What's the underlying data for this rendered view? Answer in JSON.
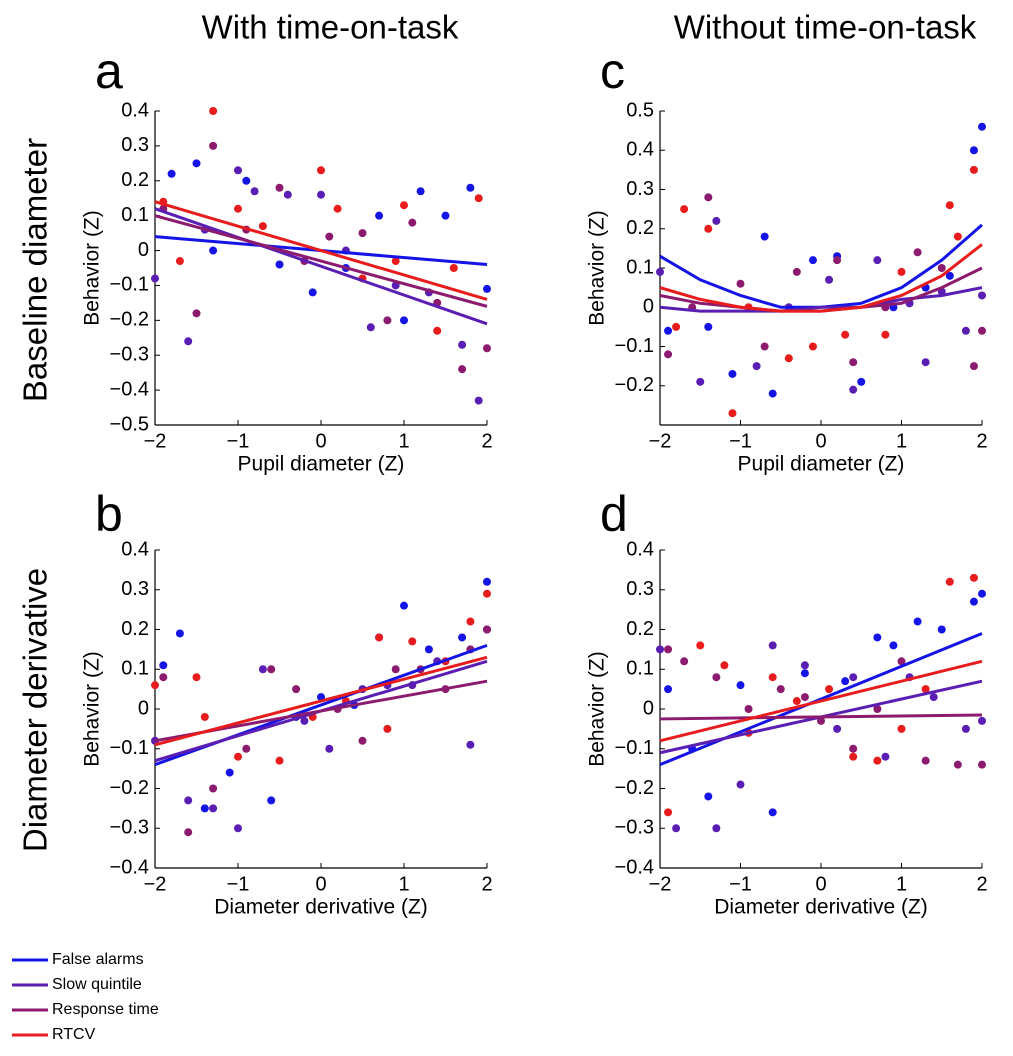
{
  "columns": [
    "With time-on-task",
    "Without time-on-task"
  ],
  "rows": [
    "Baseline diameter",
    "Diameter derivative"
  ],
  "chart_data": [
    {
      "type": "scatter",
      "label": "a",
      "xlabel": "Pupil diameter (Z)",
      "ylabel": "Behavior (Z)",
      "xlim": [
        -2,
        2
      ],
      "ylim": [
        -0.5,
        0.4
      ],
      "xticks": [
        {
          "value": -2,
          "label": "−2"
        },
        {
          "value": -1,
          "label": "−1"
        },
        0,
        1,
        2
      ],
      "yticks": [
        0.4,
        0.3,
        0.2,
        0.1,
        0,
        {
          "value": -0.1,
          "label": "−0.1"
        },
        {
          "value": -0.2,
          "label": "−0.2"
        },
        {
          "value": -0.3,
          "label": "−0.3"
        },
        {
          "value": -0.4,
          "label": "−0.4"
        },
        {
          "value": -0.5,
          "label": "−0.5"
        }
      ],
      "series": [
        {
          "name": "False alarms",
          "color": "#1414e6",
          "x": [
            -1.8,
            -1.5,
            -1.3,
            -0.9,
            -0.5,
            -0.1,
            0.3,
            0.7,
            1.0,
            1.2,
            1.5,
            1.8,
            2.0
          ],
          "values": [
            0.22,
            0.25,
            0.0,
            0.2,
            -0.04,
            -0.12,
            -0.05,
            0.1,
            -0.2,
            0.17,
            0.1,
            0.18,
            -0.11
          ],
          "fit_x": [
            -2,
            2
          ],
          "fit": [
            0.04,
            -0.04
          ]
        },
        {
          "name": "Slow quintile",
          "color": "#5a1eb4",
          "x": [
            -2,
            -1.6,
            -1.4,
            -1.0,
            -0.8,
            -0.4,
            0,
            0.3,
            0.6,
            0.9,
            1.3,
            1.7,
            1.9
          ],
          "values": [
            -0.08,
            -0.26,
            0.06,
            0.23,
            0.17,
            0.16,
            0.16,
            0.0,
            -0.22,
            -0.1,
            -0.12,
            -0.27,
            -0.43
          ],
          "fit_x": [
            -2,
            2
          ],
          "fit": [
            0.12,
            -0.21
          ]
        },
        {
          "name": "Response time",
          "color": "#8c1a6e",
          "x": [
            -1.9,
            -1.5,
            -1.3,
            -0.9,
            -0.5,
            -0.2,
            0.1,
            0.5,
            0.8,
            1.1,
            1.4,
            1.7,
            2.0
          ],
          "values": [
            0.12,
            -0.18,
            0.3,
            0.06,
            0.18,
            -0.03,
            0.04,
            0.05,
            -0.2,
            0.08,
            -0.15,
            -0.34,
            -0.28
          ],
          "fit_x": [
            -2,
            2
          ],
          "fit": [
            0.1,
            -0.16
          ]
        },
        {
          "name": "RTCV",
          "color": "#e81c1c",
          "x": [
            -1.9,
            -1.7,
            -1.3,
            -1.0,
            -0.7,
            0.0,
            0.2,
            0.5,
            0.9,
            1.0,
            1.4,
            1.6,
            1.9
          ],
          "values": [
            0.14,
            -0.03,
            0.4,
            0.12,
            0.07,
            0.23,
            0.12,
            -0.08,
            -0.03,
            0.13,
            -0.23,
            -0.05,
            0.15
          ],
          "fit_x": [
            -2,
            2
          ],
          "fit": [
            0.14,
            -0.14
          ]
        }
      ]
    },
    {
      "type": "scatter",
      "label": "b",
      "xlabel": "Diameter derivative (Z)",
      "ylabel": "Behavior (Z)",
      "xlim": [
        -2,
        2
      ],
      "ylim": [
        -0.4,
        0.4
      ],
      "xticks": [
        {
          "value": -2,
          "label": "−2"
        },
        {
          "value": -1,
          "label": "−1"
        },
        0,
        1,
        2
      ],
      "yticks": [
        0.4,
        0.3,
        0.2,
        0.1,
        0,
        {
          "value": -0.1,
          "label": "−0.1"
        },
        {
          "value": -0.2,
          "label": "−0.2"
        },
        {
          "value": -0.3,
          "label": "−0.3"
        },
        {
          "value": -0.4,
          "label": "−0.4"
        }
      ],
      "series": [
        {
          "name": "False alarms",
          "color": "#1414e6",
          "x": [
            -1.9,
            -1.7,
            -1.4,
            -1.1,
            -0.6,
            -0.3,
            0.0,
            0.4,
            0.7,
            1.0,
            1.3,
            1.7,
            2.0
          ],
          "values": [
            0.11,
            0.19,
            -0.25,
            -0.16,
            -0.23,
            -0.02,
            0.03,
            0.01,
            0.18,
            0.26,
            0.15,
            0.18,
            0.32
          ],
          "fit_x": [
            -2,
            2
          ],
          "fit": [
            -0.14,
            0.16
          ]
        },
        {
          "name": "Slow quintile",
          "color": "#5a1eb4",
          "x": [
            -2,
            -1.6,
            -1.3,
            -1.0,
            -0.7,
            -0.2,
            0.1,
            0.5,
            0.8,
            1.1,
            1.4,
            1.8,
            2.0
          ],
          "values": [
            -0.08,
            -0.23,
            -0.25,
            -0.3,
            0.1,
            -0.03,
            -0.1,
            0.05,
            0.06,
            0.06,
            0.12,
            -0.09,
            0.2
          ],
          "fit_x": [
            -2,
            2
          ],
          "fit": [
            -0.13,
            0.12
          ]
        },
        {
          "name": "Response time",
          "color": "#8c1a6e",
          "x": [
            -1.9,
            -1.6,
            -1.3,
            -0.9,
            -0.6,
            -0.3,
            0.2,
            0.5,
            0.9,
            1.2,
            1.5,
            1.8,
            2.0
          ],
          "values": [
            0.08,
            -0.31,
            -0.2,
            -0.1,
            0.1,
            0.05,
            0.0,
            -0.08,
            0.1,
            0.1,
            0.05,
            0.15,
            0.2
          ],
          "fit_x": [
            -2,
            2
          ],
          "fit": [
            -0.08,
            0.07
          ]
        },
        {
          "name": "RTCV",
          "color": "#e81c1c",
          "x": [
            -2,
            -1.5,
            -1.4,
            -1.0,
            -0.5,
            -0.1,
            0.3,
            0.7,
            0.8,
            1.1,
            1.5,
            1.8,
            2.0
          ],
          "values": [
            0.06,
            0.08,
            -0.02,
            -0.12,
            -0.13,
            -0.02,
            0.02,
            0.18,
            -0.05,
            0.17,
            0.12,
            0.22,
            0.29
          ],
          "fit_x": [
            -2,
            2
          ],
          "fit": [
            -0.09,
            0.13
          ]
        }
      ]
    },
    {
      "type": "scatter",
      "label": "c",
      "xlabel": "Pupil diameter (Z)",
      "ylabel": "Behavior (Z)",
      "xlim": [
        -2,
        2
      ],
      "ylim": [
        -0.3,
        0.5
      ],
      "xticks": [
        {
          "value": -2,
          "label": "−2"
        },
        {
          "value": -1,
          "label": "−1"
        },
        0,
        1,
        2
      ],
      "yticks": [
        0.5,
        0.4,
        0.3,
        0.2,
        0.1,
        0,
        {
          "value": -0.1,
          "label": "−0.1"
        },
        {
          "value": -0.2,
          "label": "−0.2"
        }
      ],
      "series": [
        {
          "name": "False alarms",
          "color": "#1414e6",
          "x": [
            -1.9,
            -1.4,
            -1.1,
            -0.7,
            -0.6,
            -0.1,
            0.2,
            0.5,
            0.9,
            1.3,
            1.6,
            1.9,
            2.0
          ],
          "values": [
            -0.06,
            -0.05,
            -0.17,
            0.18,
            -0.22,
            0.12,
            0.13,
            -0.19,
            0.0,
            0.05,
            0.08,
            0.4,
            0.46
          ],
          "fit_x": [
            -2,
            -1.5,
            -1,
            -0.5,
            0,
            0.5,
            1,
            1.5,
            2
          ],
          "fit": [
            0.13,
            0.07,
            0.03,
            0.0,
            0.0,
            0.01,
            0.05,
            0.12,
            0.21
          ]
        },
        {
          "name": "Slow quintile",
          "color": "#5a1eb4",
          "x": [
            -2,
            -1.5,
            -1.3,
            -0.8,
            -0.4,
            0.1,
            0.4,
            0.7,
            1.1,
            1.3,
            1.5,
            1.8,
            2.0
          ],
          "values": [
            0.09,
            -0.19,
            0.22,
            -0.15,
            0.0,
            0.07,
            -0.21,
            0.12,
            0.01,
            -0.14,
            0.04,
            -0.06,
            0.03
          ],
          "fit_x": [
            -2,
            -1.5,
            -1,
            -0.5,
            0,
            0.5,
            1,
            1.5,
            2
          ],
          "fit": [
            0.0,
            -0.01,
            -0.01,
            -0.01,
            0.0,
            0.0,
            0.02,
            0.03,
            0.05
          ]
        },
        {
          "name": "Response time",
          "color": "#8c1a6e",
          "x": [
            -1.9,
            -1.6,
            -1.4,
            -1.0,
            -0.7,
            -0.3,
            0.2,
            0.4,
            0.8,
            1.2,
            1.5,
            1.9,
            2.0
          ],
          "values": [
            -0.12,
            0.0,
            0.28,
            0.06,
            -0.1,
            0.09,
            0.12,
            -0.14,
            0.0,
            0.14,
            0.1,
            -0.15,
            -0.06
          ],
          "fit_x": [
            -2,
            -1.5,
            -1,
            -0.5,
            0,
            0.5,
            1,
            1.5,
            2
          ],
          "fit": [
            0.03,
            0.01,
            0.0,
            -0.01,
            -0.01,
            0.0,
            0.01,
            0.05,
            0.1
          ]
        },
        {
          "name": "RTCV",
          "color": "#e81c1c",
          "x": [
            -1.8,
            -1.7,
            -1.4,
            -1.1,
            -0.9,
            -0.4,
            -0.1,
            0.3,
            0.8,
            1.0,
            1.6,
            1.7,
            1.9
          ],
          "values": [
            -0.05,
            0.25,
            0.2,
            -0.27,
            0.0,
            -0.13,
            -0.1,
            -0.07,
            -0.07,
            0.09,
            0.26,
            0.18,
            0.35
          ],
          "fit_x": [
            -2,
            -1.5,
            -1,
            -0.5,
            0,
            0.5,
            1,
            1.5,
            2
          ],
          "fit": [
            0.05,
            0.02,
            0.0,
            -0.01,
            -0.01,
            0.0,
            0.03,
            0.08,
            0.16
          ]
        }
      ]
    },
    {
      "type": "scatter",
      "label": "d",
      "xlabel": "Diameter derivative (Z)",
      "ylabel": "Behavior (Z)",
      "xlim": [
        -2,
        2
      ],
      "ylim": [
        -0.4,
        0.4
      ],
      "xticks": [
        {
          "value": -2,
          "label": "−2"
        },
        {
          "value": -1,
          "label": "−1"
        },
        0,
        1,
        2
      ],
      "yticks": [
        0.4,
        0.3,
        0.2,
        0.1,
        0,
        {
          "value": -0.1,
          "label": "−0.1"
        },
        {
          "value": -0.2,
          "label": "−0.2"
        },
        {
          "value": -0.3,
          "label": "−0.3"
        },
        {
          "value": -0.4,
          "label": "−0.4"
        }
      ],
      "series": [
        {
          "name": "False alarms",
          "color": "#1414e6",
          "x": [
            -1.9,
            -1.6,
            -1.4,
            -1.0,
            -0.6,
            -0.2,
            0.3,
            0.7,
            0.9,
            1.2,
            1.5,
            1.9,
            2.0
          ],
          "values": [
            0.05,
            -0.1,
            -0.22,
            0.06,
            -0.26,
            0.09,
            0.07,
            0.18,
            0.16,
            0.22,
            0.2,
            0.27,
            0.29
          ],
          "fit_x": [
            -2,
            2
          ],
          "fit": [
            -0.14,
            0.19
          ]
        },
        {
          "name": "Slow quintile",
          "color": "#5a1eb4",
          "x": [
            -2,
            -1.8,
            -1.3,
            -1.0,
            -0.6,
            -0.2,
            0.2,
            0.4,
            0.8,
            1.1,
            1.4,
            1.8,
            2.0
          ],
          "values": [
            0.15,
            -0.3,
            -0.3,
            -0.19,
            0.16,
            0.11,
            -0.05,
            0.08,
            -0.12,
            0.08,
            0.03,
            -0.05,
            -0.03
          ],
          "fit_x": [
            -2,
            2
          ],
          "fit": [
            -0.11,
            0.07
          ]
        },
        {
          "name": "Response time",
          "color": "#8c1a6e",
          "x": [
            -1.9,
            -1.7,
            -1.3,
            -0.9,
            -0.5,
            -0.2,
            0.0,
            0.4,
            0.7,
            1.0,
            1.3,
            1.7,
            2.0
          ],
          "values": [
            0.15,
            0.12,
            0.08,
            0.0,
            0.05,
            0.03,
            -0.03,
            -0.1,
            0.0,
            0.12,
            -0.13,
            -0.14,
            -0.14
          ],
          "fit_x": [
            -2,
            2
          ],
          "fit": [
            -0.025,
            -0.015
          ]
        },
        {
          "name": "RTCV",
          "color": "#e81c1c",
          "x": [
            -1.9,
            -1.5,
            -1.2,
            -0.9,
            -0.6,
            -0.3,
            0.1,
            0.4,
            0.7,
            1.0,
            1.3,
            1.6,
            1.9
          ],
          "values": [
            -0.26,
            0.16,
            0.11,
            -0.06,
            0.08,
            0.02,
            0.05,
            -0.12,
            -0.13,
            -0.05,
            0.05,
            0.32,
            0.33
          ],
          "fit_x": [
            -2,
            2
          ],
          "fit": [
            -0.08,
            0.12
          ]
        }
      ]
    }
  ]
}
